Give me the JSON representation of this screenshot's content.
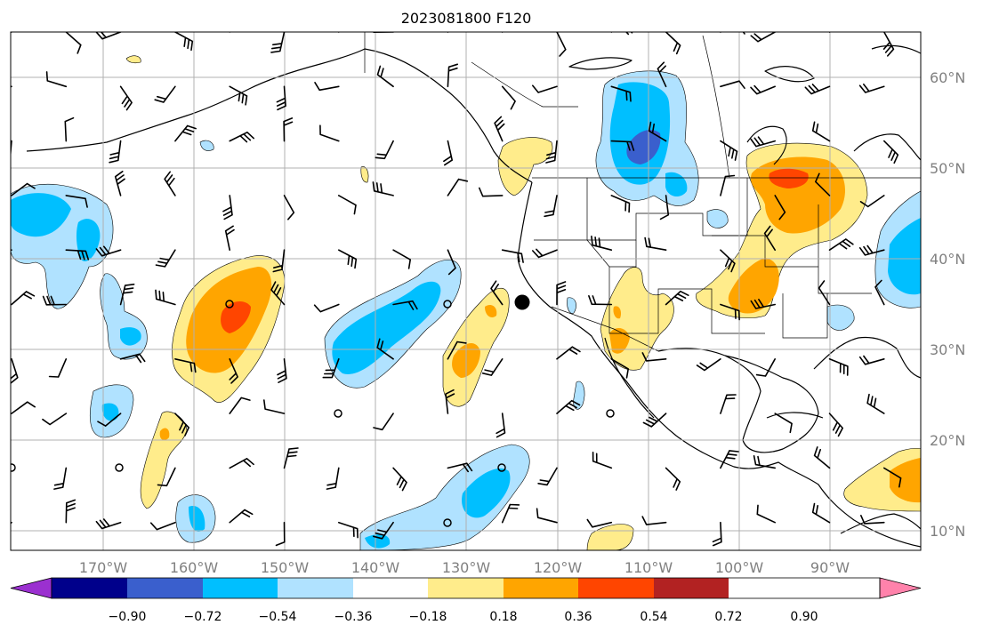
{
  "title": "2023081800 F120",
  "lon_labels": [
    "170°W",
    "160°W",
    "150°W",
    "140°W",
    "130°W",
    "120°W",
    "110°W",
    "100°W",
    "90°W"
  ],
  "lat_labels": [
    "60°N",
    "50°N",
    "40°N",
    "30°N",
    "20°N",
    "10°N"
  ],
  "colorbar": {
    "colors": [
      "#9b30d0",
      "#00008b",
      "#3a5fcd",
      "#00bfff",
      "#b0e2ff",
      "#ffffff",
      "#ffec8b",
      "#ffa500",
      "#ff4500",
      "#b22222",
      "#ff82ab"
    ],
    "tick_labels": [
      "−0.90",
      "−0.72",
      "−0.54",
      "−0.36",
      "−0.18",
      "0.18",
      "0.36",
      "0.54",
      "0.72",
      "0.90"
    ]
  },
  "marker": {
    "name": "large-black-dot",
    "lon": -124.1,
    "lat": 35.3
  }
}
